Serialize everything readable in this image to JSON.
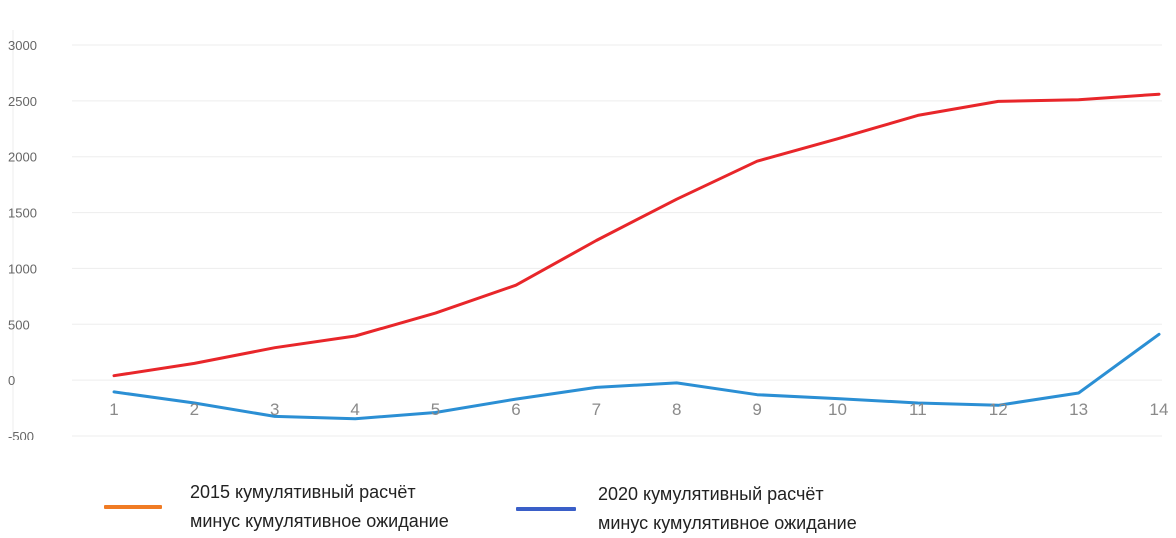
{
  "chart_data": {
    "type": "line",
    "title": "",
    "xlabel": "",
    "ylabel": "",
    "categories": [
      "1",
      "2",
      "3",
      "4",
      "5",
      "6",
      "7",
      "8",
      "9",
      "10",
      "11",
      "12",
      "13",
      "14"
    ],
    "ylim": [
      -500,
      3000
    ],
    "yticks": [
      3000,
      2500,
      2000,
      1500,
      1000,
      500,
      0,
      -500
    ],
    "grid": "horizontal",
    "legend_position": "bottom",
    "series": [
      {
        "name_lines": [
          "2015 кумулятивный расчёт",
          "минус кумулятивное ожидание"
        ],
        "line_color": "#e8262a",
        "legend_color": "#f07b24",
        "values": [
          40,
          150,
          290,
          395,
          600,
          850,
          1250,
          1620,
          1960,
          2160,
          2370,
          2495,
          2510,
          2560
        ]
      },
      {
        "name_lines": [
          "2020 кумулятивный расчёт",
          "минус кумулятивное ожидание"
        ],
        "line_color": "#2b8fd4",
        "legend_color": "#3a5fc8",
        "values": [
          -105,
          -205,
          -325,
          -345,
          -290,
          -170,
          -65,
          -25,
          -130,
          -165,
          -205,
          -225,
          -115,
          410
        ]
      }
    ]
  }
}
